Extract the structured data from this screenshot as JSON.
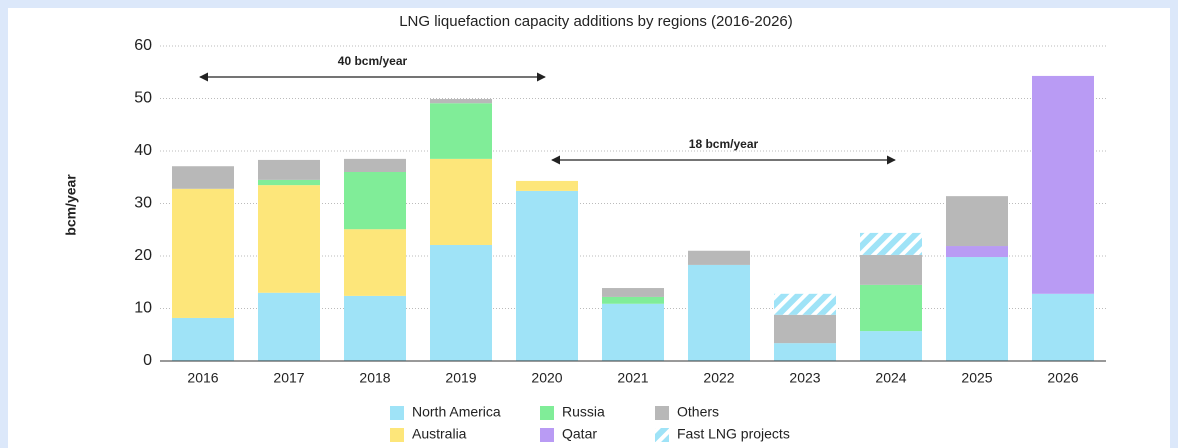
{
  "chart_data": {
    "type": "stacked_bar",
    "title": "LNG liquefaction capacity additions by regions (2016-2026)",
    "y_label": "bcm/year",
    "categories": [
      "2016",
      "2017",
      "2018",
      "2019",
      "2020",
      "2021",
      "2022",
      "2023",
      "2024",
      "2025",
      "2026"
    ],
    "series": [
      {
        "name": "North America",
        "color": "#9fe3f7",
        "values": [
          8.2,
          13,
          12.4,
          22.1,
          32.4,
          10.9,
          18.3,
          3.4,
          5.7,
          19.8,
          12.8
        ]
      },
      {
        "name": "Australia",
        "color": "#fde67a",
        "values": [
          24.6,
          20.5,
          12.7,
          16.4,
          1.9,
          0,
          0,
          0,
          0,
          0,
          0
        ]
      },
      {
        "name": "Russia",
        "color": "#80ed98",
        "values": [
          0,
          1,
          10.9,
          10.6,
          0,
          1.3,
          0,
          0,
          8.8,
          0,
          0
        ]
      },
      {
        "name": "Qatar",
        "color": "#b99bf4",
        "values": [
          0,
          0,
          0,
          0,
          0,
          0,
          0,
          0,
          0,
          2.1,
          41.5
        ]
      },
      {
        "name": "Others",
        "color": "#b8b8b8",
        "values": [
          4.3,
          3.8,
          2.5,
          0.8,
          0,
          1.7,
          2.7,
          5.4,
          5.7,
          9.5,
          0
        ]
      },
      {
        "name": "Fast LNG projects",
        "color": "#9fe3f7",
        "pattern": "hatch",
        "values": [
          0,
          0,
          0,
          0,
          0,
          0,
          0,
          4,
          4.2,
          0,
          0
        ]
      }
    ],
    "annotations": [
      "40 bcm/year",
      "18 bcm/year"
    ],
    "ylim": [
      0,
      60
    ],
    "yticks": [
      0,
      10,
      20,
      30,
      40,
      50,
      60
    ],
    "grid": true
  }
}
